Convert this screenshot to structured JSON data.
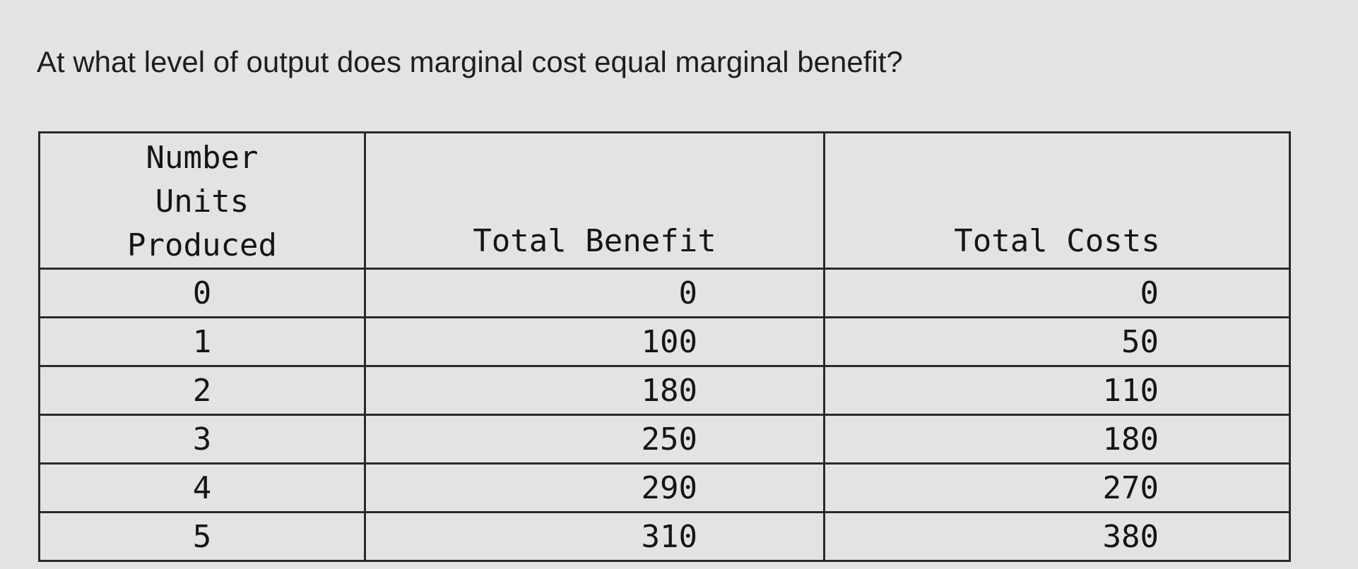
{
  "question": "At what level of output does marginal cost equal marginal benefit?",
  "table": {
    "headers": [
      "Number Units Produced",
      "Total Benefit",
      "Total Costs"
    ],
    "rows": [
      [
        "0",
        "0",
        "0"
      ],
      [
        "1",
        "100",
        "50"
      ],
      [
        "2",
        "180",
        "110"
      ],
      [
        "3",
        "250",
        "180"
      ],
      [
        "4",
        "290",
        "270"
      ],
      [
        "5",
        "310",
        "380"
      ]
    ]
  }
}
